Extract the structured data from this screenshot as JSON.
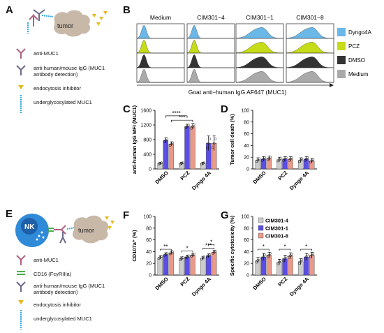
{
  "panels": {
    "A": {
      "letter": "A",
      "tumor_label": "tumor",
      "legend": [
        {
          "icon": "anti-muc1-antibody-icon",
          "text": "anti-MUC1"
        },
        {
          "icon": "secondary-antibody-icon",
          "text": "anti-human/mouse IgG (MUC1 antibody detection)"
        },
        {
          "icon": "endocytosis-inhibitor-icon",
          "text": "endocytosis inhibitor"
        },
        {
          "icon": "muc1-icon",
          "text": "underglycosylated MUC1"
        }
      ]
    },
    "B": {
      "letter": "B",
      "column_titles": [
        "Medium",
        "CIM301−4",
        "CIM301−1",
        "CIM301−8"
      ],
      "row_colors": [
        "#6ab8e8",
        "#c7dc18",
        "#333333",
        "#aaaaaa"
      ],
      "legend": [
        {
          "label": "Dyngo4A",
          "color": "#6ab8e8"
        },
        {
          "label": "PCZ",
          "color": "#c7dc18"
        },
        {
          "label": "DMSO",
          "color": "#333333"
        },
        {
          "label": "Medium",
          "color": "#aaaaaa"
        }
      ],
      "xlabel": "Goat anti−human IgG AF647 (MUC1)"
    },
    "E": {
      "letter": "E",
      "nk_label": "NK",
      "tumor_label": "tumor",
      "legend": [
        {
          "icon": "anti-muc1-antibody-icon",
          "text": "anti-MUC1"
        },
        {
          "icon": "cd16-receptor-icon",
          "text": "CD16 (FcγRIIIa)"
        },
        {
          "icon": "secondary-antibody-icon",
          "text": "anti-human/mouse IgG (MUC1 antibody detection)"
        },
        {
          "icon": "endocytosis-inhibitor-icon",
          "text": "endocytosis inhibitor"
        },
        {
          "icon": "muc1-icon",
          "text": "underglycosylated MUC1"
        }
      ]
    }
  },
  "colors": {
    "CIM301-4": "#cccccc",
    "CIM301-1": "#5a4ee6",
    "CIM301-8": "#e9998a"
  },
  "chart_data": [
    {
      "id": "C",
      "type": "bar",
      "categories": [
        "DMSO",
        "PCZ",
        "Dyngo 4A"
      ],
      "series": [
        {
          "name": "CIM301-4",
          "values": [
            150,
            150,
            150
          ],
          "err": [
            30,
            30,
            30
          ]
        },
        {
          "name": "CIM301-1",
          "values": [
            780,
            1160,
            700
          ],
          "err": [
            70,
            60,
            200
          ]
        },
        {
          "name": "CIM301-8",
          "values": [
            680,
            1160,
            700
          ],
          "err": [
            60,
            80,
            200
          ]
        }
      ],
      "ylabel": "anti-human IgG MFI (MUC1)",
      "ylim": [
        0,
        1600
      ],
      "yticks": [
        0,
        400,
        800,
        1200,
        1600
      ],
      "significance": [
        "****",
        "***"
      ]
    },
    {
      "id": "D",
      "type": "bar",
      "categories": [
        "DMSO",
        "PCZ",
        "Dyngo 4A"
      ],
      "series": [
        {
          "name": "CIM301-4",
          "values": [
            15,
            16,
            15
          ],
          "err": [
            4,
            4,
            4
          ]
        },
        {
          "name": "CIM301-1",
          "values": [
            17,
            17,
            17
          ],
          "err": [
            4,
            4,
            4
          ]
        },
        {
          "name": "CIM301-8",
          "values": [
            18,
            17,
            14
          ],
          "err": [
            4,
            4,
            4
          ]
        }
      ],
      "ylabel": "Tumor cell death (%)",
      "ylim": [
        0,
        100
      ],
      "yticks": [
        0,
        20,
        40,
        60,
        80,
        100
      ]
    },
    {
      "id": "F",
      "type": "bar",
      "categories": [
        "DMSO",
        "PCZ",
        "Dyngo 4A"
      ],
      "series": [
        {
          "name": "CIM301-4",
          "values": [
            30,
            28,
            29
          ],
          "err": [
            3,
            3,
            3
          ]
        },
        {
          "name": "CIM301-1",
          "values": [
            35,
            31,
            33
          ],
          "err": [
            3,
            3,
            3
          ]
        },
        {
          "name": "CIM301-8",
          "values": [
            38,
            34,
            39
          ],
          "err": [
            3,
            3,
            3
          ]
        }
      ],
      "ylabel": "CD107a⁺ (%)",
      "ylim": [
        0,
        100
      ],
      "yticks": [
        0,
        20,
        40,
        60,
        80,
        100
      ],
      "significance": [
        "**",
        "*",
        "*",
        "***"
      ]
    },
    {
      "id": "G",
      "type": "bar",
      "categories": [
        "DMSO",
        "PCZ",
        "Dyngo 4A"
      ],
      "series": [
        {
          "name": "CIM301-4",
          "values": [
            25,
            22,
            23
          ],
          "err": [
            5,
            5,
            5
          ]
        },
        {
          "name": "CIM301-1",
          "values": [
            31,
            28,
            31
          ],
          "err": [
            6,
            6,
            6
          ]
        },
        {
          "name": "CIM301-8",
          "values": [
            34,
            33,
            34
          ],
          "err": [
            5,
            5,
            5
          ]
        }
      ],
      "ylabel": "Specific cytotoxicity (%)",
      "ylim": [
        0,
        100
      ],
      "yticks": [
        0,
        20,
        40,
        60,
        80,
        100
      ],
      "significance": [
        "*",
        "*",
        "*"
      ],
      "legend": [
        "CIM301-4",
        "CIM301-1",
        "CIM301-8"
      ]
    }
  ]
}
